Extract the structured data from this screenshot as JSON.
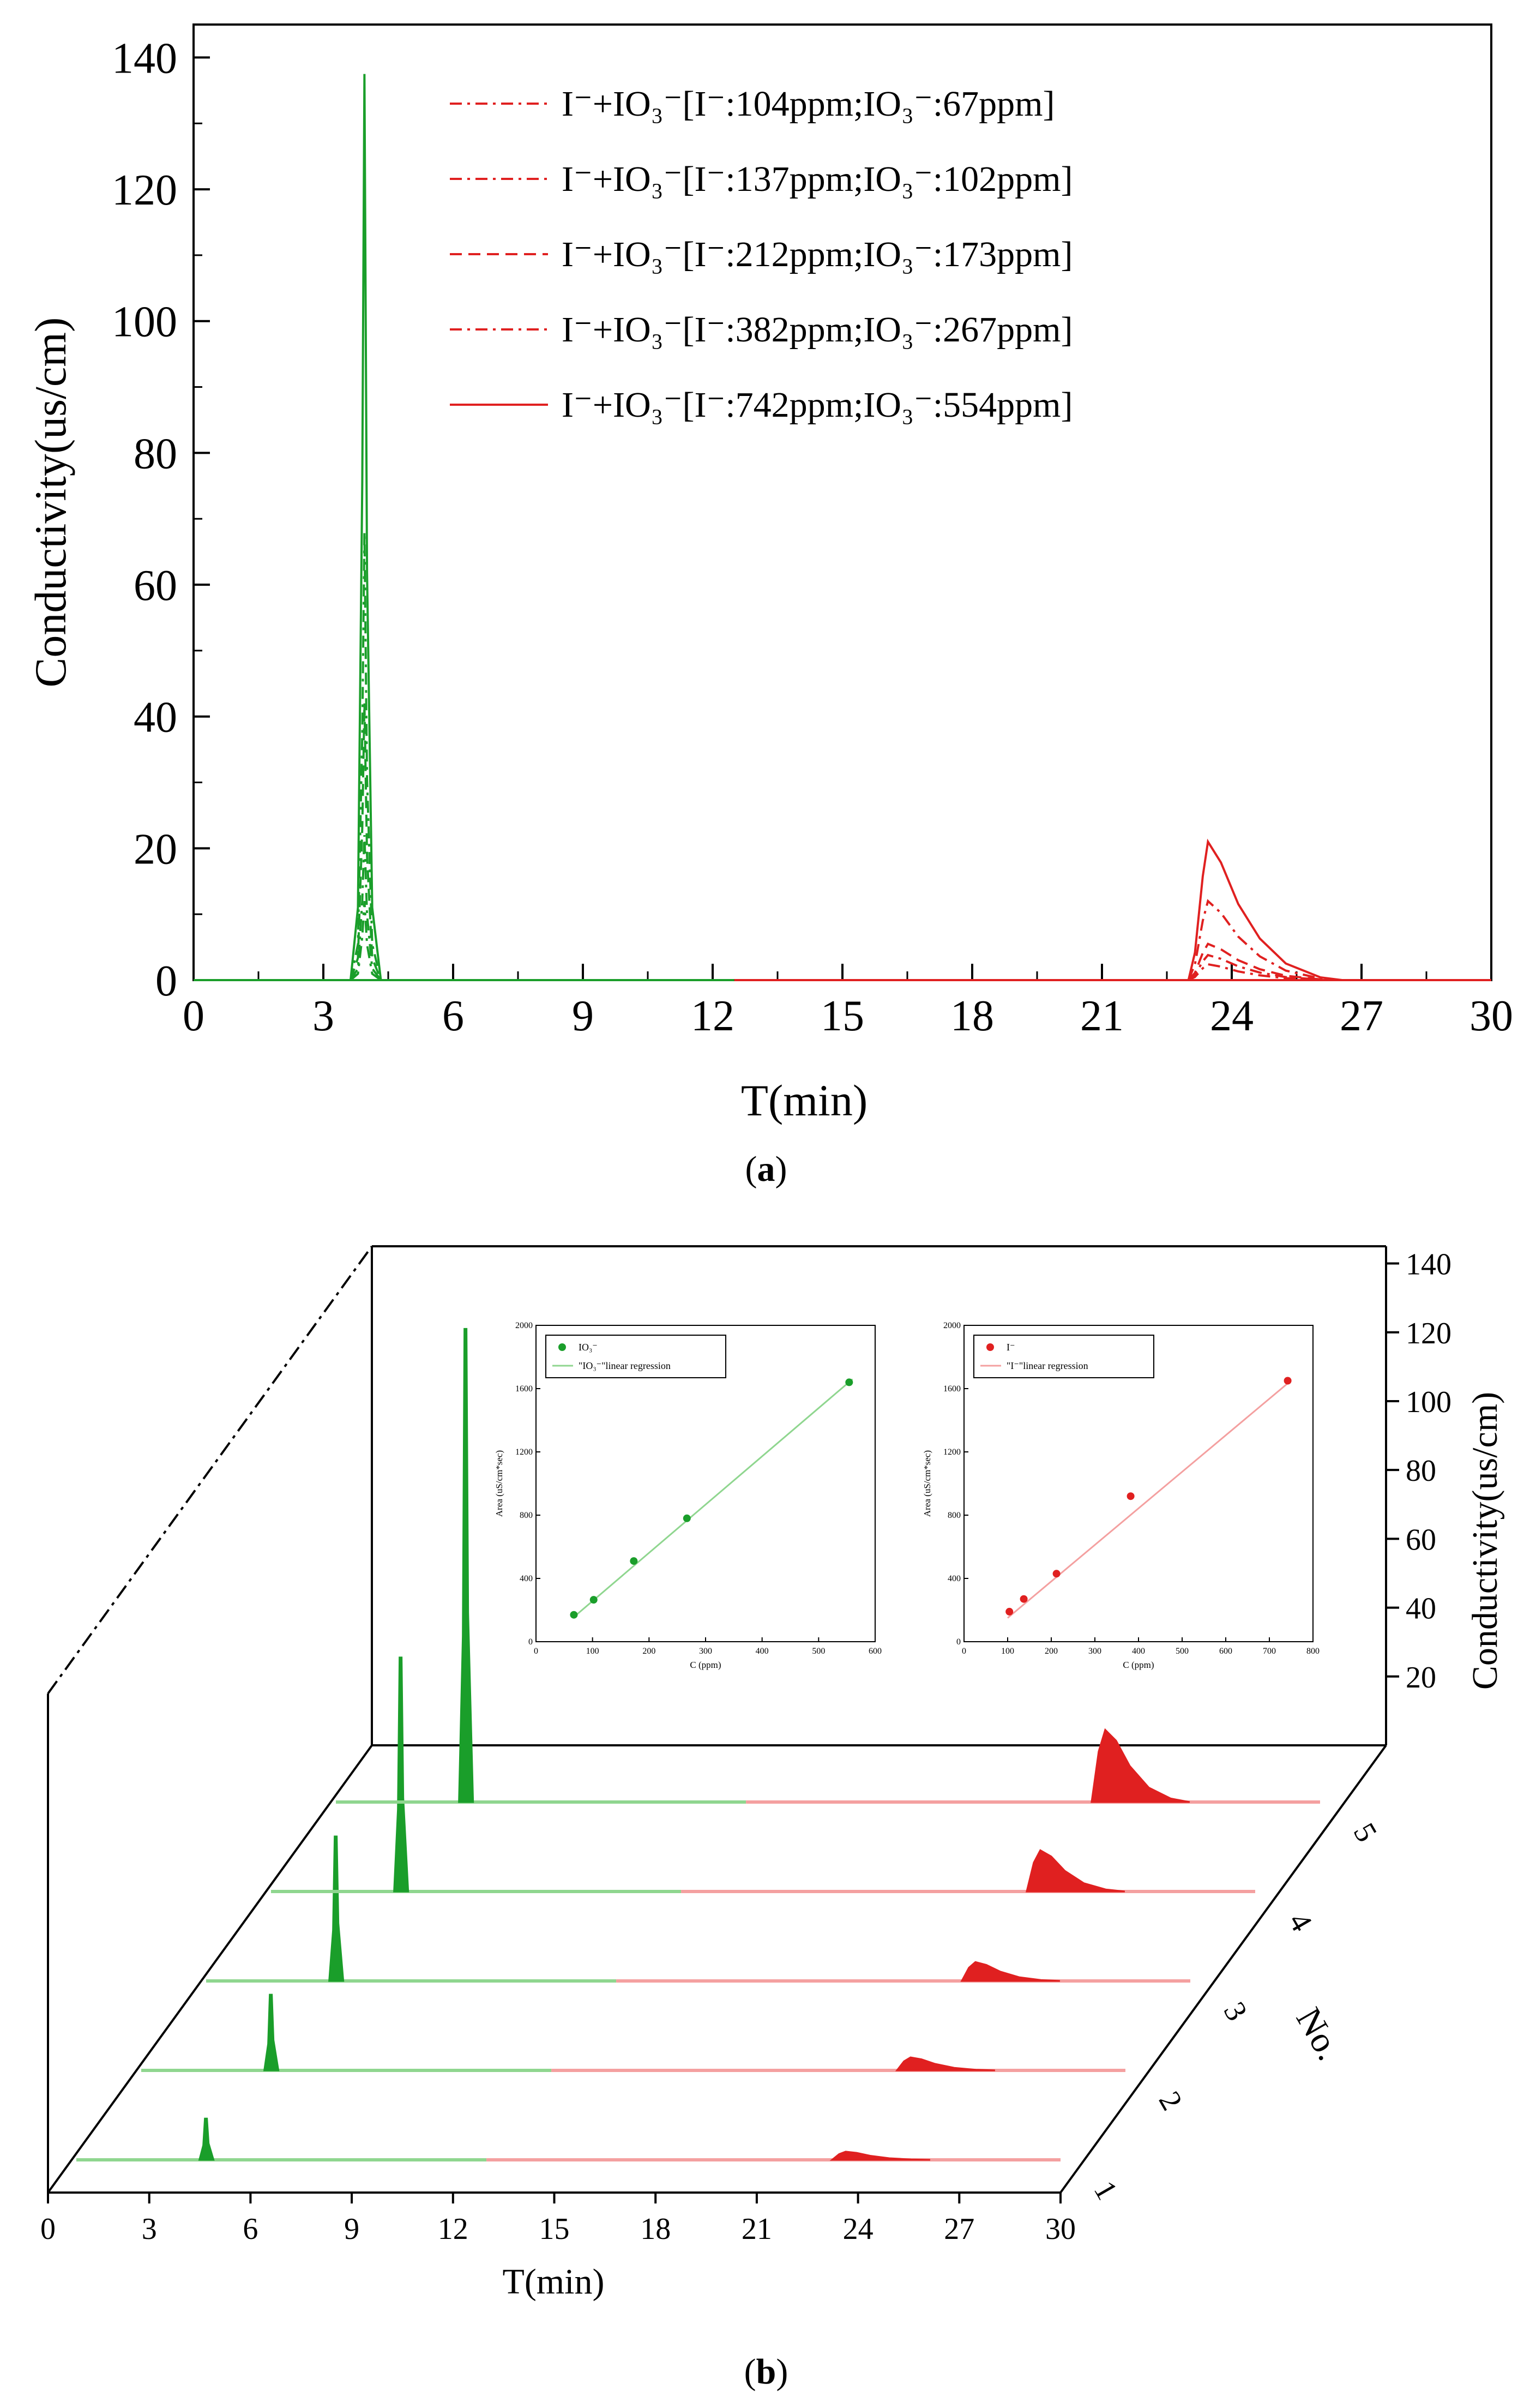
{
  "figure": {
    "panel_a_label": "a",
    "panel_b_label": "b"
  },
  "colors": {
    "green": "#1a9e2a",
    "red": "#e02020",
    "light_green": "#8fd68f",
    "light_red": "#f4a0a0",
    "axis": "#000000"
  },
  "chart_data": [
    {
      "id": "a",
      "type": "line",
      "xlabel": "T(min)",
      "ylabel": "Conductivity(us/cm)",
      "xlim": [
        0,
        30
      ],
      "ylim": [
        0,
        145
      ],
      "xticks": [
        0,
        3,
        6,
        9,
        12,
        15,
        18,
        21,
        24,
        27,
        30
      ],
      "yticks": [
        0,
        20,
        40,
        60,
        80,
        100,
        120,
        140
      ],
      "legend": {
        "placement": "top-right",
        "entries": [
          {
            "text": "I⁻+IO₃⁻[I⁻:104ppm;IO₃⁻:67ppm]",
            "style": "dash-dot"
          },
          {
            "text": "I⁻+IO₃⁻[I⁻:137ppm;IO₃⁻:102ppm]",
            "style": "dash-dot"
          },
          {
            "text": "I⁻+IO₃⁻[I⁻:212ppm;IO₃⁻:173ppm]",
            "style": "dashed"
          },
          {
            "text": "I⁻+IO₃⁻[I⁻:382ppm;IO₃⁻:267ppm]",
            "style": "dash-dot"
          },
          {
            "text": "I⁻+IO₃⁻[I⁻:742ppm;IO₃⁻:554ppm]",
            "style": "solid"
          }
        ]
      },
      "series": [
        {
          "name": "104ppm/67ppm",
          "iodate_peak_time": 3.95,
          "iodate_peak_height": 12,
          "iodide_peak_time": 23.45,
          "iodide_peak_height": 2.4
        },
        {
          "name": "137ppm/102ppm",
          "iodate_peak_time": 3.95,
          "iodate_peak_height": 22,
          "iodide_peak_time": 23.45,
          "iodide_peak_height": 3.8
        },
        {
          "name": "212ppm/173ppm",
          "iodate_peak_time": 3.95,
          "iodate_peak_height": 42,
          "iodide_peak_time": 23.45,
          "iodide_peak_height": 5.5
        },
        {
          "name": "382ppm/267ppm",
          "iodate_peak_time": 3.95,
          "iodate_peak_height": 68,
          "iodide_peak_time": 23.45,
          "iodide_peak_height": 12
        },
        {
          "name": "742ppm/554ppm",
          "iodate_peak_time": 3.95,
          "iodate_peak_height": 137.5,
          "iodide_peak_time": 23.45,
          "iodide_peak_height": 21
        }
      ]
    },
    {
      "id": "b",
      "type": "line",
      "xlabel": "T(min)",
      "ylabel": "Conductivity(us/cm)",
      "depth_label": "No.",
      "xlim": [
        0,
        30
      ],
      "ylim": [
        0,
        145
      ],
      "xticks": [
        0,
        3,
        6,
        9,
        12,
        15,
        18,
        21,
        24,
        27,
        30
      ],
      "yticks": [
        20,
        40,
        60,
        80,
        100,
        120,
        140
      ],
      "depth_ticks": [
        "1",
        "2",
        "3",
        "4",
        "5"
      ],
      "series": [
        {
          "name": "1",
          "iodate_peak_height": 12,
          "iodide_peak_height": 2.4
        },
        {
          "name": "2",
          "iodate_peak_height": 22,
          "iodide_peak_height": 3.8
        },
        {
          "name": "3",
          "iodate_peak_height": 42,
          "iodide_peak_height": 5.5
        },
        {
          "name": "4",
          "iodate_peak_height": 68,
          "iodide_peak_height": 12
        },
        {
          "name": "5",
          "iodate_peak_height": 137.5,
          "iodide_peak_height": 21
        }
      ]
    },
    {
      "id": "b-inset-1",
      "type": "scatter",
      "xlabel": "C (ppm)",
      "ylabel": "Area (uS/cm*sec)",
      "xlim": [
        0,
        600
      ],
      "ylim": [
        0,
        2000
      ],
      "xticks": [
        0,
        100,
        200,
        300,
        400,
        500,
        600
      ],
      "yticks": [
        0,
        400,
        800,
        1200,
        1600,
        2000
      ],
      "legend": {
        "placement": "top-left",
        "entries": [
          "IO₃⁻",
          "\"IO₃⁻\"linear regression"
        ]
      },
      "x": [
        67,
        102,
        173,
        267,
        554
      ],
      "y": [
        170,
        265,
        510,
        780,
        1640
      ],
      "regression": {
        "x": [
          65,
          560
        ],
        "y": [
          150,
          1660
        ]
      }
    },
    {
      "id": "b-inset-2",
      "type": "scatter",
      "xlabel": "C (ppm)",
      "ylabel": "Area (uS/cm*sec)",
      "xlim": [
        0,
        800
      ],
      "ylim": [
        0,
        2000
      ],
      "xticks": [
        0,
        100,
        200,
        300,
        400,
        500,
        600,
        700,
        800
      ],
      "yticks": [
        0,
        400,
        800,
        1200,
        1600,
        2000
      ],
      "legend": {
        "placement": "top-left",
        "entries": [
          "I⁻",
          "\"I⁻\"linear regression"
        ]
      },
      "x": [
        104,
        137,
        212,
        382,
        742
      ],
      "y": [
        190,
        270,
        430,
        920,
        1650
      ],
      "regression": {
        "x": [
          100,
          745
        ],
        "y": [
          150,
          1640
        ]
      }
    }
  ]
}
